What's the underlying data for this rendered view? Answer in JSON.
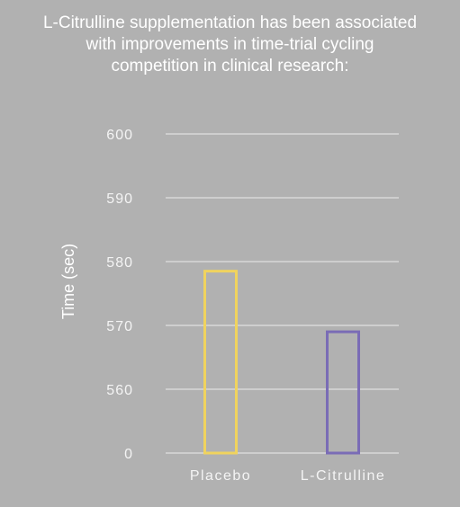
{
  "title_lines": [
    "L-Citrulline supplementation has been associated",
    "with improvements in time-trial cycling",
    "competition in clinical research:"
  ],
  "chart_data": {
    "type": "bar",
    "title": "L-Citrulline supplementation has been associated with improvements in time-trial cycling competition in clinical research:",
    "xlabel": "",
    "ylabel": "Time (sec)",
    "categories": [
      "Placebo",
      "L-Citrulline"
    ],
    "values": [
      578.5,
      569
    ],
    "y_ticks": [
      "0",
      "560",
      "570",
      "580",
      "590",
      "600"
    ],
    "ylim": [
      550,
      600
    ],
    "axis_break": true,
    "grid": true,
    "colors": {
      "Placebo": "#f0d35e",
      "L-Citrulline": "#7a6cb6",
      "grid": "#d8d8d8",
      "text": "#ffffff",
      "background": "#b1b1b1"
    }
  }
}
